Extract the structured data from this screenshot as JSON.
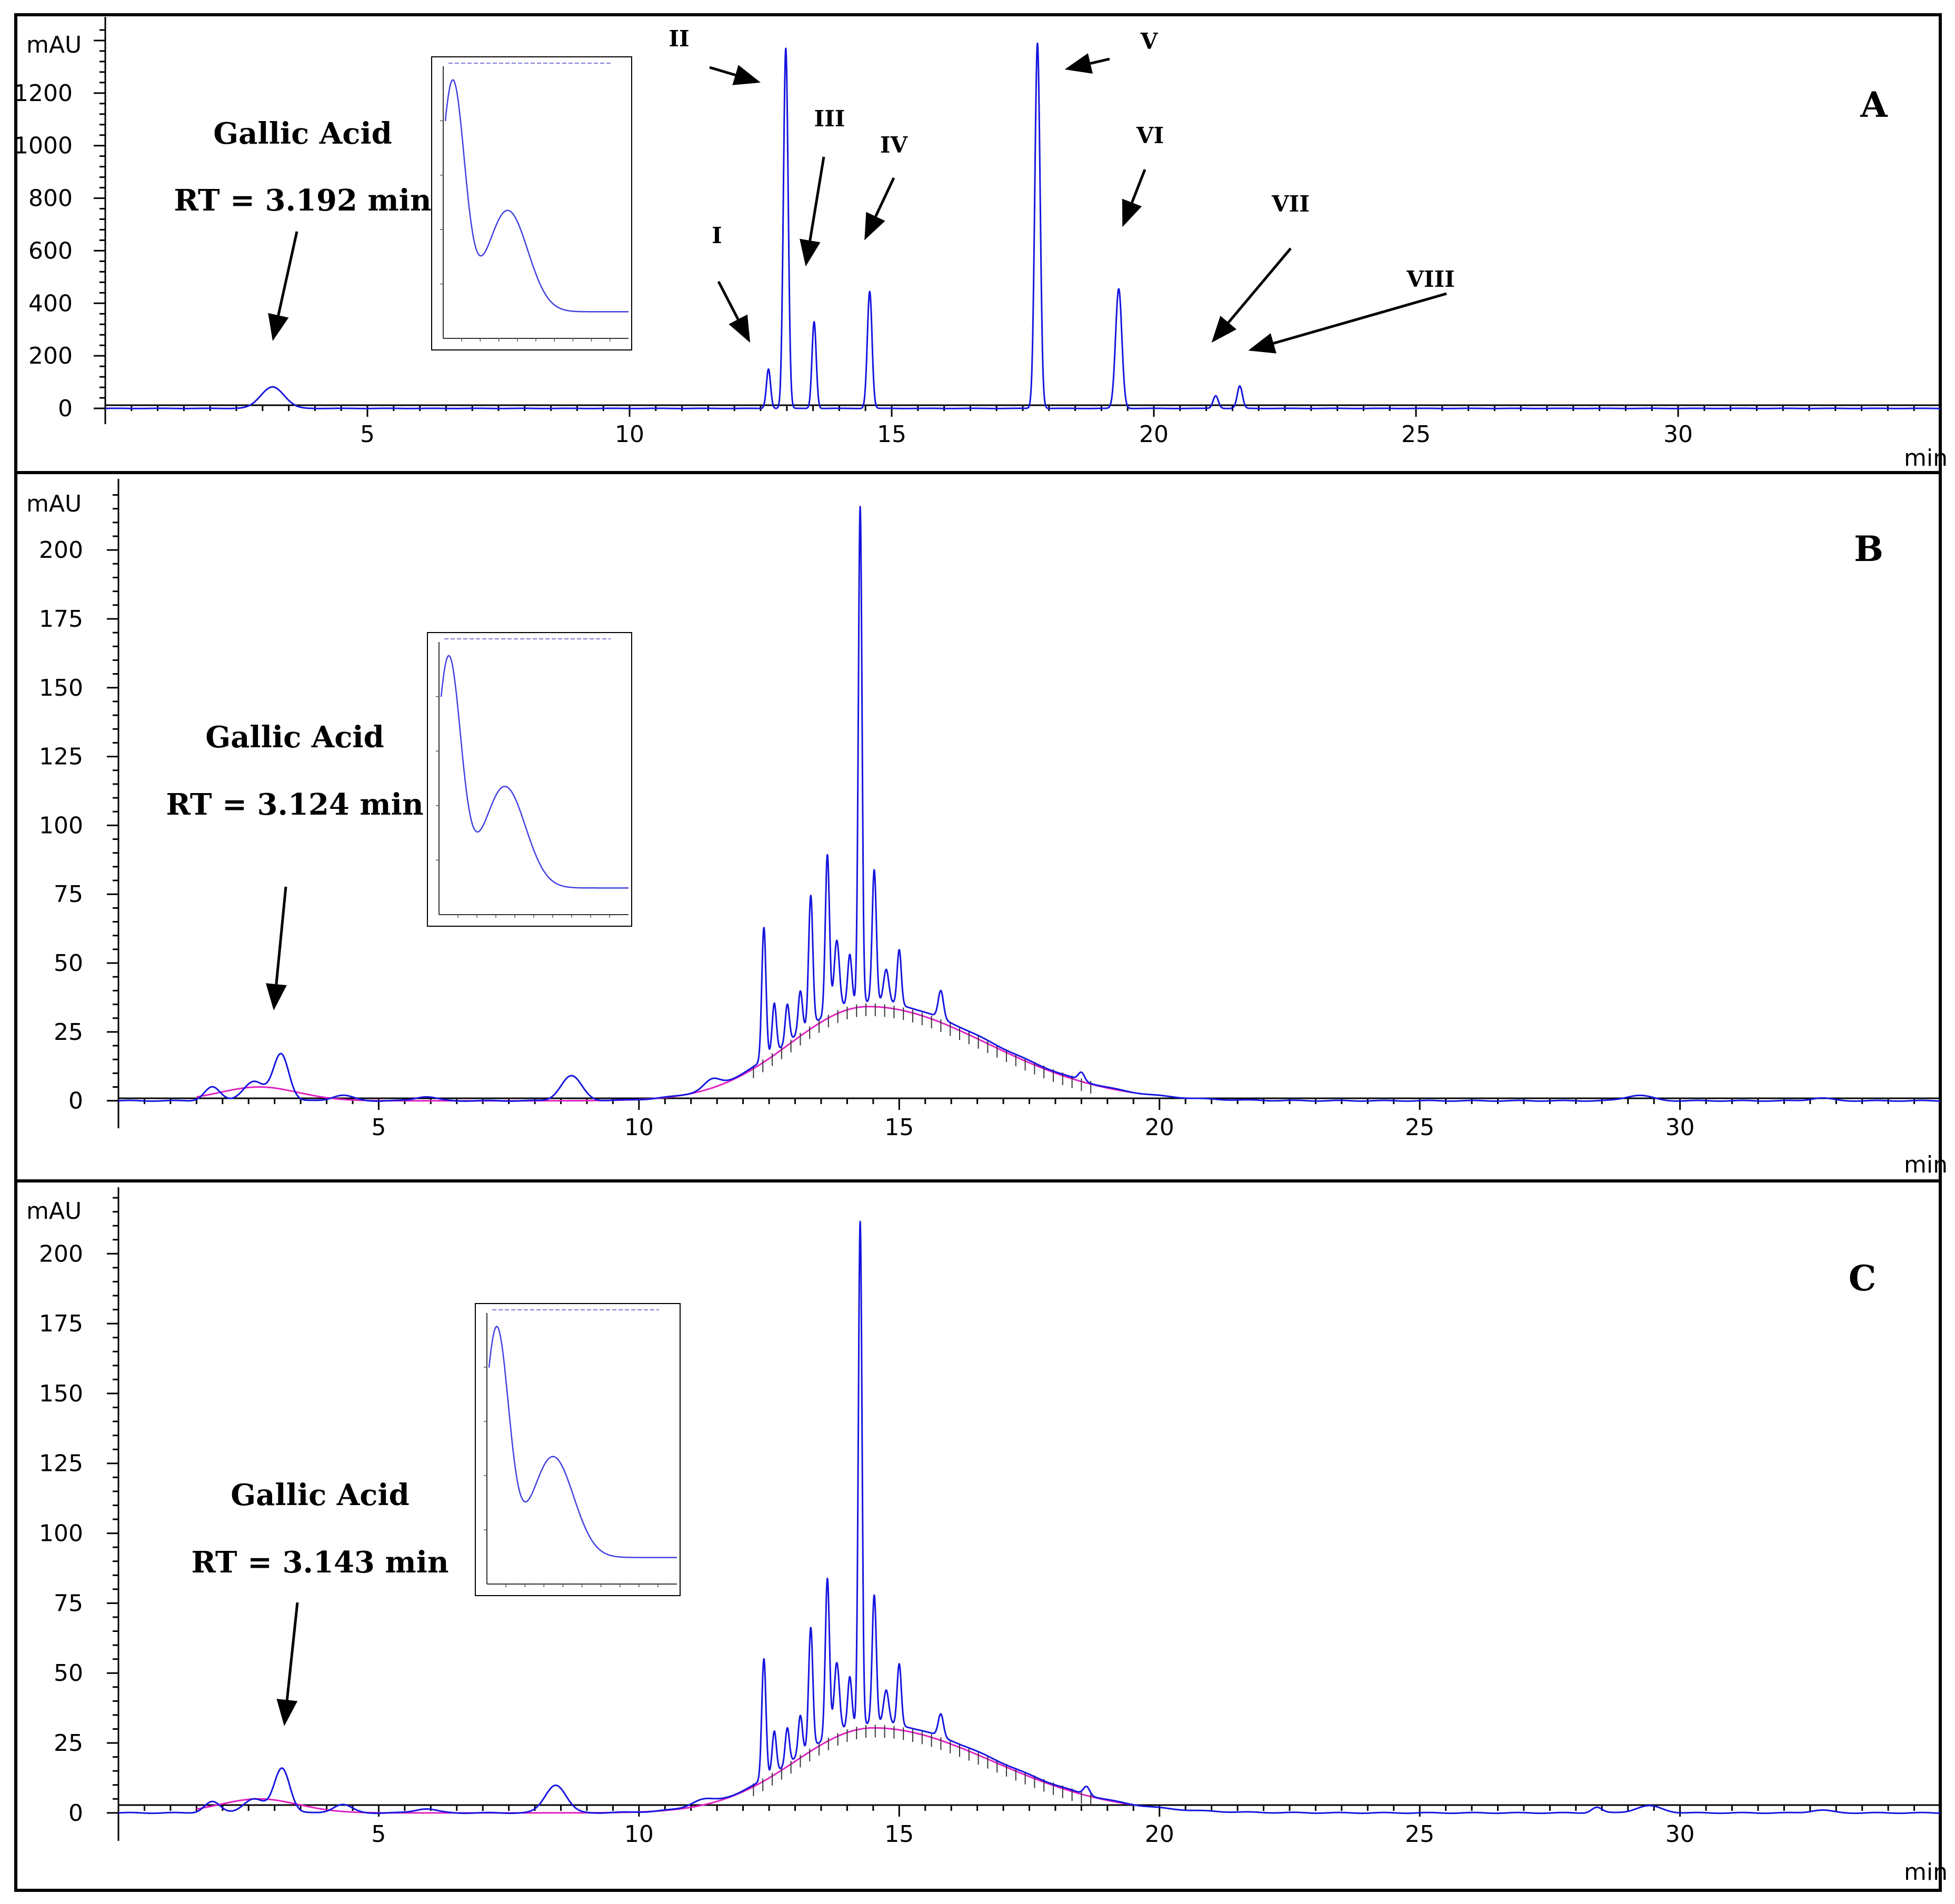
{
  "x_unit": "min",
  "y_unit": "mAU",
  "chart_data": [
    {
      "type": "line",
      "panel": "A",
      "title": "",
      "xlabel": "min",
      "ylabel": "mAU",
      "xlim": [
        0,
        35
      ],
      "ylim": [
        -60,
        1450
      ],
      "x_ticks": [
        5,
        10,
        15,
        20,
        25,
        30
      ],
      "y_ticks": [
        0,
        200,
        400,
        600,
        800,
        1000,
        1200
      ],
      "annotation": {
        "compound": "Gallic Acid",
        "rt": "RT = 3.192 min",
        "peak_x": 3.19,
        "peak_y": 80
      },
      "peaks": [
        {
          "x": 3.19,
          "y": 82,
          "w": 0.22
        },
        {
          "x": 12.65,
          "y": 150,
          "w": 0.04
        },
        {
          "x": 12.98,
          "y": 1370,
          "w": 0.045
        },
        {
          "x": 13.52,
          "y": 330,
          "w": 0.04
        },
        {
          "x": 14.58,
          "y": 445,
          "w": 0.045
        },
        {
          "x": 17.78,
          "y": 1390,
          "w": 0.05
        },
        {
          "x": 19.33,
          "y": 455,
          "w": 0.06
        },
        {
          "x": 21.18,
          "y": 48,
          "w": 0.05
        },
        {
          "x": 21.64,
          "y": 85,
          "w": 0.05
        }
      ],
      "peak_labels": [
        {
          "label": "I",
          "peak_x": 12.3,
          "peak_y": 250
        },
        {
          "label": "II",
          "peak_x": 12.5,
          "peak_y": 1240
        },
        {
          "label": "III",
          "peak_x": 13.36,
          "peak_y": 540
        },
        {
          "label": "IV",
          "peak_x": 14.48,
          "peak_y": 640
        },
        {
          "label": "V",
          "peak_x": 18.3,
          "peak_y": 1290
        },
        {
          "label": "VI",
          "peak_x": 19.4,
          "peak_y": 690
        },
        {
          "label": "VII",
          "peak_x": 21.1,
          "peak_y": 250
        },
        {
          "label": "VIII",
          "peak_x": 21.8,
          "peak_y": 220
        }
      ],
      "series": [
        {
          "name": "chromatogram",
          "color": "#1515e0"
        }
      ]
    },
    {
      "type": "line",
      "panel": "B",
      "title": "",
      "xlabel": "min",
      "ylabel": "mAU",
      "xlim": [
        0,
        35
      ],
      "ylim": [
        -10,
        222
      ],
      "x_ticks": [
        5,
        10,
        15,
        20,
        25,
        30
      ],
      "y_ticks": [
        0,
        25,
        50,
        75,
        100,
        125,
        150,
        175,
        200
      ],
      "annotation": {
        "compound": "Gallic Acid",
        "rt": "RT = 3.124 min",
        "peak_x": 3.124,
        "peak_y": 18
      },
      "hump": {
        "center": 14.4,
        "height": 36,
        "rise": 1.5,
        "fall": 2.3
      },
      "peaks": [
        {
          "x": 1.8,
          "y": 5,
          "w": 0.15
        },
        {
          "x": 2.6,
          "y": 7,
          "w": 0.2
        },
        {
          "x": 3.124,
          "y": 17,
          "w": 0.15
        },
        {
          "x": 4.3,
          "y": 2,
          "w": 0.2
        },
        {
          "x": 5.9,
          "y": 1.5,
          "w": 0.2
        },
        {
          "x": 8.7,
          "y": 9,
          "w": 0.2
        },
        {
          "x": 11.4,
          "y": 3,
          "w": 0.15
        },
        {
          "x": 12.4,
          "y": 48,
          "w": 0.04
        },
        {
          "x": 12.6,
          "y": 18,
          "w": 0.04
        },
        {
          "x": 12.85,
          "y": 14,
          "w": 0.04
        },
        {
          "x": 13.1,
          "y": 15,
          "w": 0.04
        },
        {
          "x": 13.3,
          "y": 47,
          "w": 0.04
        },
        {
          "x": 13.62,
          "y": 58,
          "w": 0.04
        },
        {
          "x": 13.8,
          "y": 25,
          "w": 0.05
        },
        {
          "x": 14.05,
          "y": 18,
          "w": 0.04
        },
        {
          "x": 14.25,
          "y": 180,
          "w": 0.035
        },
        {
          "x": 14.52,
          "y": 48,
          "w": 0.04
        },
        {
          "x": 14.75,
          "y": 12,
          "w": 0.05
        },
        {
          "x": 15.0,
          "y": 20,
          "w": 0.04
        },
        {
          "x": 15.8,
          "y": 10,
          "w": 0.05
        },
        {
          "x": 18.5,
          "y": 3,
          "w": 0.06
        },
        {
          "x": 29.2,
          "y": 2,
          "w": 0.25
        },
        {
          "x": 32.7,
          "y": 1,
          "w": 0.2
        }
      ],
      "inset": {
        "curve": "uv-spectrum"
      },
      "series": [
        {
          "name": "chromatogram",
          "color": "#1515e0"
        },
        {
          "name": "baseline",
          "color": "#e020c0"
        }
      ]
    },
    {
      "type": "line",
      "panel": "C",
      "title": "",
      "xlabel": "min",
      "ylabel": "mAU",
      "xlim": [
        0,
        35
      ],
      "ylim": [
        -10,
        220
      ],
      "x_ticks": [
        5,
        10,
        15,
        20,
        25,
        30
      ],
      "y_ticks": [
        0,
        25,
        50,
        75,
        100,
        125,
        150,
        175,
        200
      ],
      "annotation": {
        "compound": "Gallic Acid",
        "rt": "RT = 3.143 min",
        "peak_x": 3.143,
        "peak_y": 18
      },
      "hump": {
        "center": 14.5,
        "height": 32,
        "rise": 1.5,
        "fall": 2.3
      },
      "peaks": [
        {
          "x": 1.8,
          "y": 4,
          "w": 0.15
        },
        {
          "x": 2.6,
          "y": 5,
          "w": 0.2
        },
        {
          "x": 3.143,
          "y": 16,
          "w": 0.15
        },
        {
          "x": 4.3,
          "y": 3,
          "w": 0.18
        },
        {
          "x": 5.9,
          "y": 1.5,
          "w": 0.2
        },
        {
          "x": 8.4,
          "y": 10,
          "w": 0.2
        },
        {
          "x": 11.2,
          "y": 2,
          "w": 0.2
        },
        {
          "x": 12.4,
          "y": 43,
          "w": 0.04
        },
        {
          "x": 12.6,
          "y": 15,
          "w": 0.04
        },
        {
          "x": 12.85,
          "y": 13,
          "w": 0.04
        },
        {
          "x": 13.1,
          "y": 14,
          "w": 0.04
        },
        {
          "x": 13.3,
          "y": 43,
          "w": 0.04
        },
        {
          "x": 13.62,
          "y": 57,
          "w": 0.04
        },
        {
          "x": 13.8,
          "y": 25,
          "w": 0.05
        },
        {
          "x": 14.05,
          "y": 18,
          "w": 0.04
        },
        {
          "x": 14.25,
          "y": 180,
          "w": 0.035
        },
        {
          "x": 14.52,
          "y": 46,
          "w": 0.04
        },
        {
          "x": 14.75,
          "y": 12,
          "w": 0.05
        },
        {
          "x": 15.0,
          "y": 22,
          "w": 0.04
        },
        {
          "x": 15.8,
          "y": 8,
          "w": 0.05
        },
        {
          "x": 18.6,
          "y": 3,
          "w": 0.06
        },
        {
          "x": 28.4,
          "y": 2,
          "w": 0.1
        },
        {
          "x": 29.4,
          "y": 2.5,
          "w": 0.25
        },
        {
          "x": 32.7,
          "y": 1,
          "w": 0.2
        }
      ],
      "inset": {
        "curve": "uv-spectrum"
      },
      "series": [
        {
          "name": "chromatogram",
          "color": "#1515e0"
        },
        {
          "name": "baseline",
          "color": "#e020c0"
        }
      ]
    }
  ]
}
